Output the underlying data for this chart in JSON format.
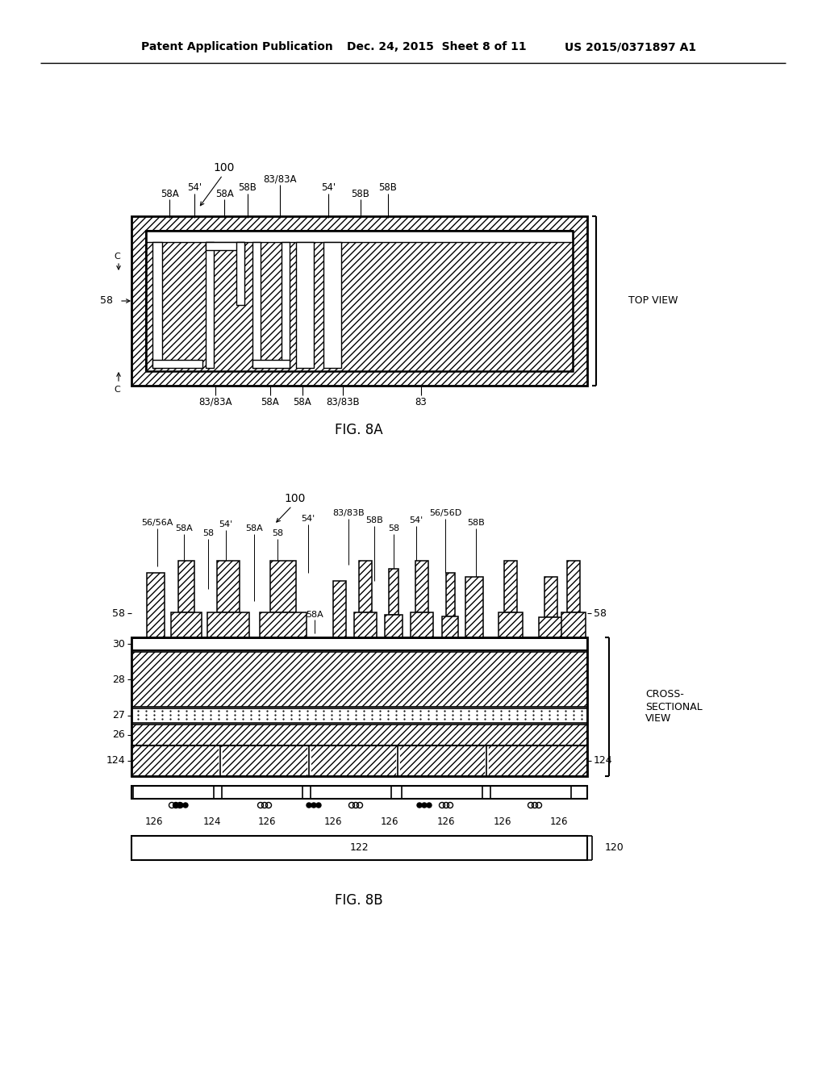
{
  "header_left": "Patent Application Publication",
  "header_mid": "Dec. 24, 2015  Sheet 8 of 11",
  "header_right": "US 2015/0371897 A1",
  "fig8a_label": "FIG. 8A",
  "fig8b_label": "FIG. 8B",
  "top_view_label": "TOP VIEW",
  "cross_section_label": "CROSS-\nSECTIONAL\nVIEW",
  "bg_color": "#ffffff"
}
